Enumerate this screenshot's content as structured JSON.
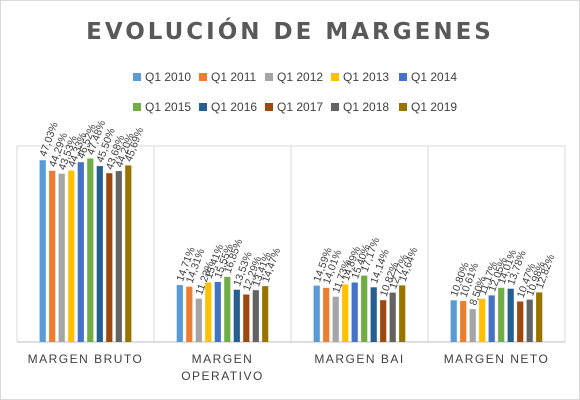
{
  "chart_data": {
    "type": "bar",
    "title": "EVOLUCIÓN DE MARGENES",
    "categories": [
      "MARGEN BRUTO",
      "MARGEN OPERATIVO",
      "MARGEN BAI",
      "MARGEN NETO"
    ],
    "category_lines": [
      [
        "MARGEN BRUTO"
      ],
      [
        "MARGEN",
        "OPERATIVO"
      ],
      [
        "MARGEN BAI"
      ],
      [
        "MARGEN NETO"
      ]
    ],
    "series": [
      {
        "name": "Q1 2010",
        "color": "#5B9BD5",
        "values": [
          47.03,
          14.71,
          14.59,
          10.8
        ],
        "labels": [
          "47,03%",
          "14,71%",
          "14,59%",
          "10,80%"
        ]
      },
      {
        "name": "Q1 2011",
        "color": "#ED7D31",
        "values": [
          44.29,
          14.31,
          14.01,
          10.61
        ],
        "labels": [
          "44,29%",
          "14,31%",
          "14,01%",
          "10,61%"
        ]
      },
      {
        "name": "Q1 2012",
        "color": "#A5A5A5",
        "values": [
          43.53,
          11.23,
          11.73,
          8.5
        ],
        "labels": [
          "43,53%",
          "11,23%",
          "11,73%",
          "8,50%"
        ]
      },
      {
        "name": "Q1 2013",
        "color": "#FFC000",
        "values": [
          44.33,
          15.41,
          14.89,
          11.17
        ],
        "labels": [
          "44,33%",
          "15,41%",
          "14,89%",
          "11,17%"
        ]
      },
      {
        "name": "Q1 2014",
        "color": "#4472C4",
        "values": [
          46.52,
          15.55,
          15.4,
          12.05
        ],
        "labels": [
          "46,52%",
          "15,55%",
          "15,40%",
          "12,05%"
        ]
      },
      {
        "name": "Q1 2015",
        "color": "#70AD47",
        "values": [
          47.48,
          16.85,
          17.17,
          14.01
        ],
        "labels": [
          "47,48%",
          "16,85%",
          "17,17%",
          "14,01%"
        ]
      },
      {
        "name": "Q1 2016",
        "color": "#255E91",
        "values": [
          45.5,
          13.53,
          14.14,
          13.78
        ],
        "labels": [
          "45,50%",
          "13,53%",
          "14,14%",
          "13,78%"
        ]
      },
      {
        "name": "Q1 2017",
        "color": "#9E480E",
        "values": [
          43.68,
          12.29,
          10.82,
          10.47
        ],
        "labels": [
          "43,68%",
          "12,29%",
          "10,82%",
          "10,47%"
        ]
      },
      {
        "name": "Q1 2018",
        "color": "#636363",
        "values": [
          44.2,
          13.41,
          12.77,
          10.98
        ],
        "labels": [
          "44,20%",
          "13,41%",
          "12,77%",
          "10,98%"
        ]
      },
      {
        "name": "Q1 2019",
        "color": "#997300",
        "values": [
          45.69,
          14.47,
          14.64,
          12.82
        ],
        "labels": [
          "45,69%",
          "14,47%",
          "14,64%",
          "12,82%"
        ]
      }
    ],
    "ylim": [
      0,
      52
    ],
    "grid": false,
    "legend_placement": "top",
    "xlabel": "",
    "ylabel": ""
  }
}
